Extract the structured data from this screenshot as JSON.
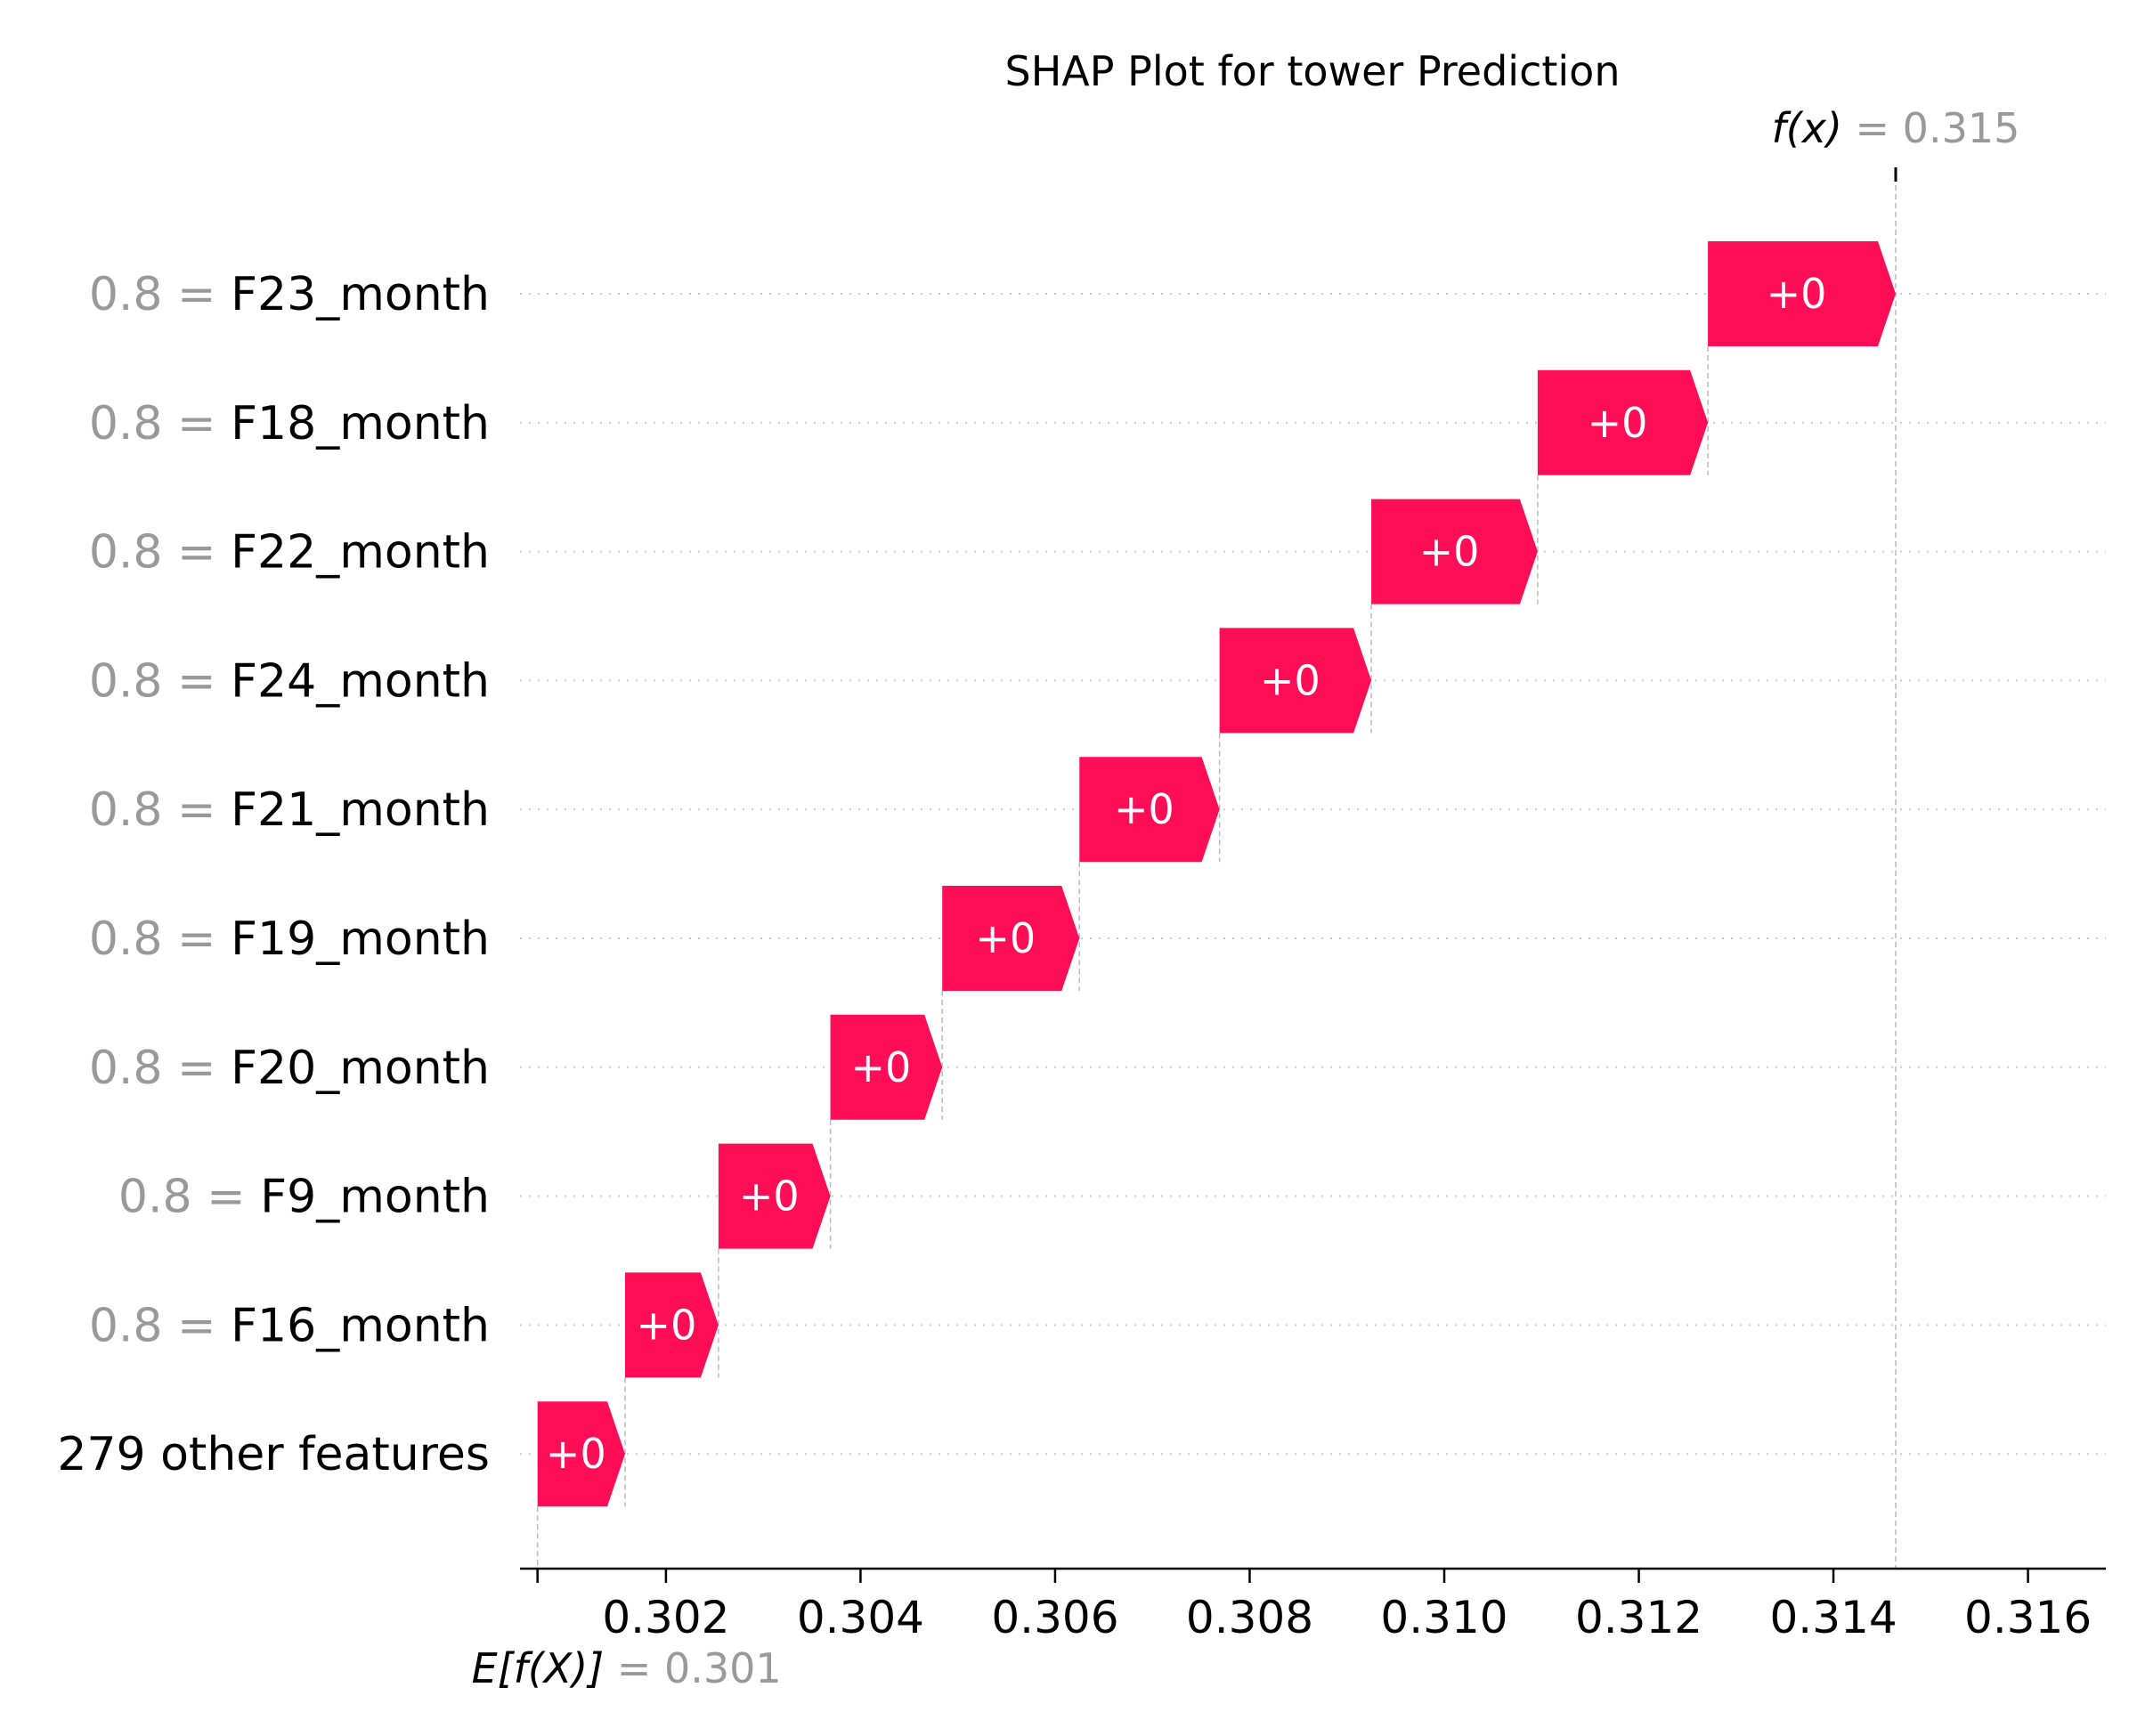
{
  "chart_data": {
    "type": "waterfall",
    "title": "SHAP Plot for tower Prediction",
    "base_value": 0.301,
    "base_value_label": "0.301",
    "base_value_prefix": "E[f(X)]",
    "output_value": 0.315,
    "output_value_label": "0.315",
    "output_value_prefix": "f(x)",
    "xlim": [
      0.3005,
      0.3168
    ],
    "x_ticks": [
      0.302,
      0.304,
      0.306,
      0.308,
      0.31,
      0.312,
      0.314,
      0.316
    ],
    "x_tick_labels": [
      "0.302",
      "0.304",
      "0.306",
      "0.308",
      "0.310",
      "0.312",
      "0.314",
      "0.316"
    ],
    "bar_color": "#ff0d57",
    "features": [
      {
        "value_label": "0.8",
        "name": "F23_month",
        "start": 0.31271,
        "end": 0.31464,
        "label": "+0"
      },
      {
        "value_label": "0.8",
        "name": "F18_month",
        "start": 0.31096,
        "end": 0.31271,
        "label": "+0"
      },
      {
        "value_label": "0.8",
        "name": "F22_month",
        "start": 0.30925,
        "end": 0.31096,
        "label": "+0"
      },
      {
        "value_label": "0.8",
        "name": "F24_month",
        "start": 0.30769,
        "end": 0.30925,
        "label": "+0"
      },
      {
        "value_label": "0.8",
        "name": "F21_month",
        "start": 0.30625,
        "end": 0.30769,
        "label": "+0"
      },
      {
        "value_label": "0.8",
        "name": "F19_month",
        "start": 0.30484,
        "end": 0.30625,
        "label": "+0"
      },
      {
        "value_label": "0.8",
        "name": "F20_month",
        "start": 0.30369,
        "end": 0.30484,
        "label": "+0"
      },
      {
        "value_label": "0.8",
        "name": "F9_month",
        "start": 0.30254,
        "end": 0.30369,
        "label": "+0"
      },
      {
        "value_label": "0.8",
        "name": "F16_month",
        "start": 0.30158,
        "end": 0.30254,
        "label": "+0"
      },
      {
        "value_label": "",
        "name": "279 other features",
        "start": 0.30068,
        "end": 0.30158,
        "label": "+0"
      }
    ]
  }
}
